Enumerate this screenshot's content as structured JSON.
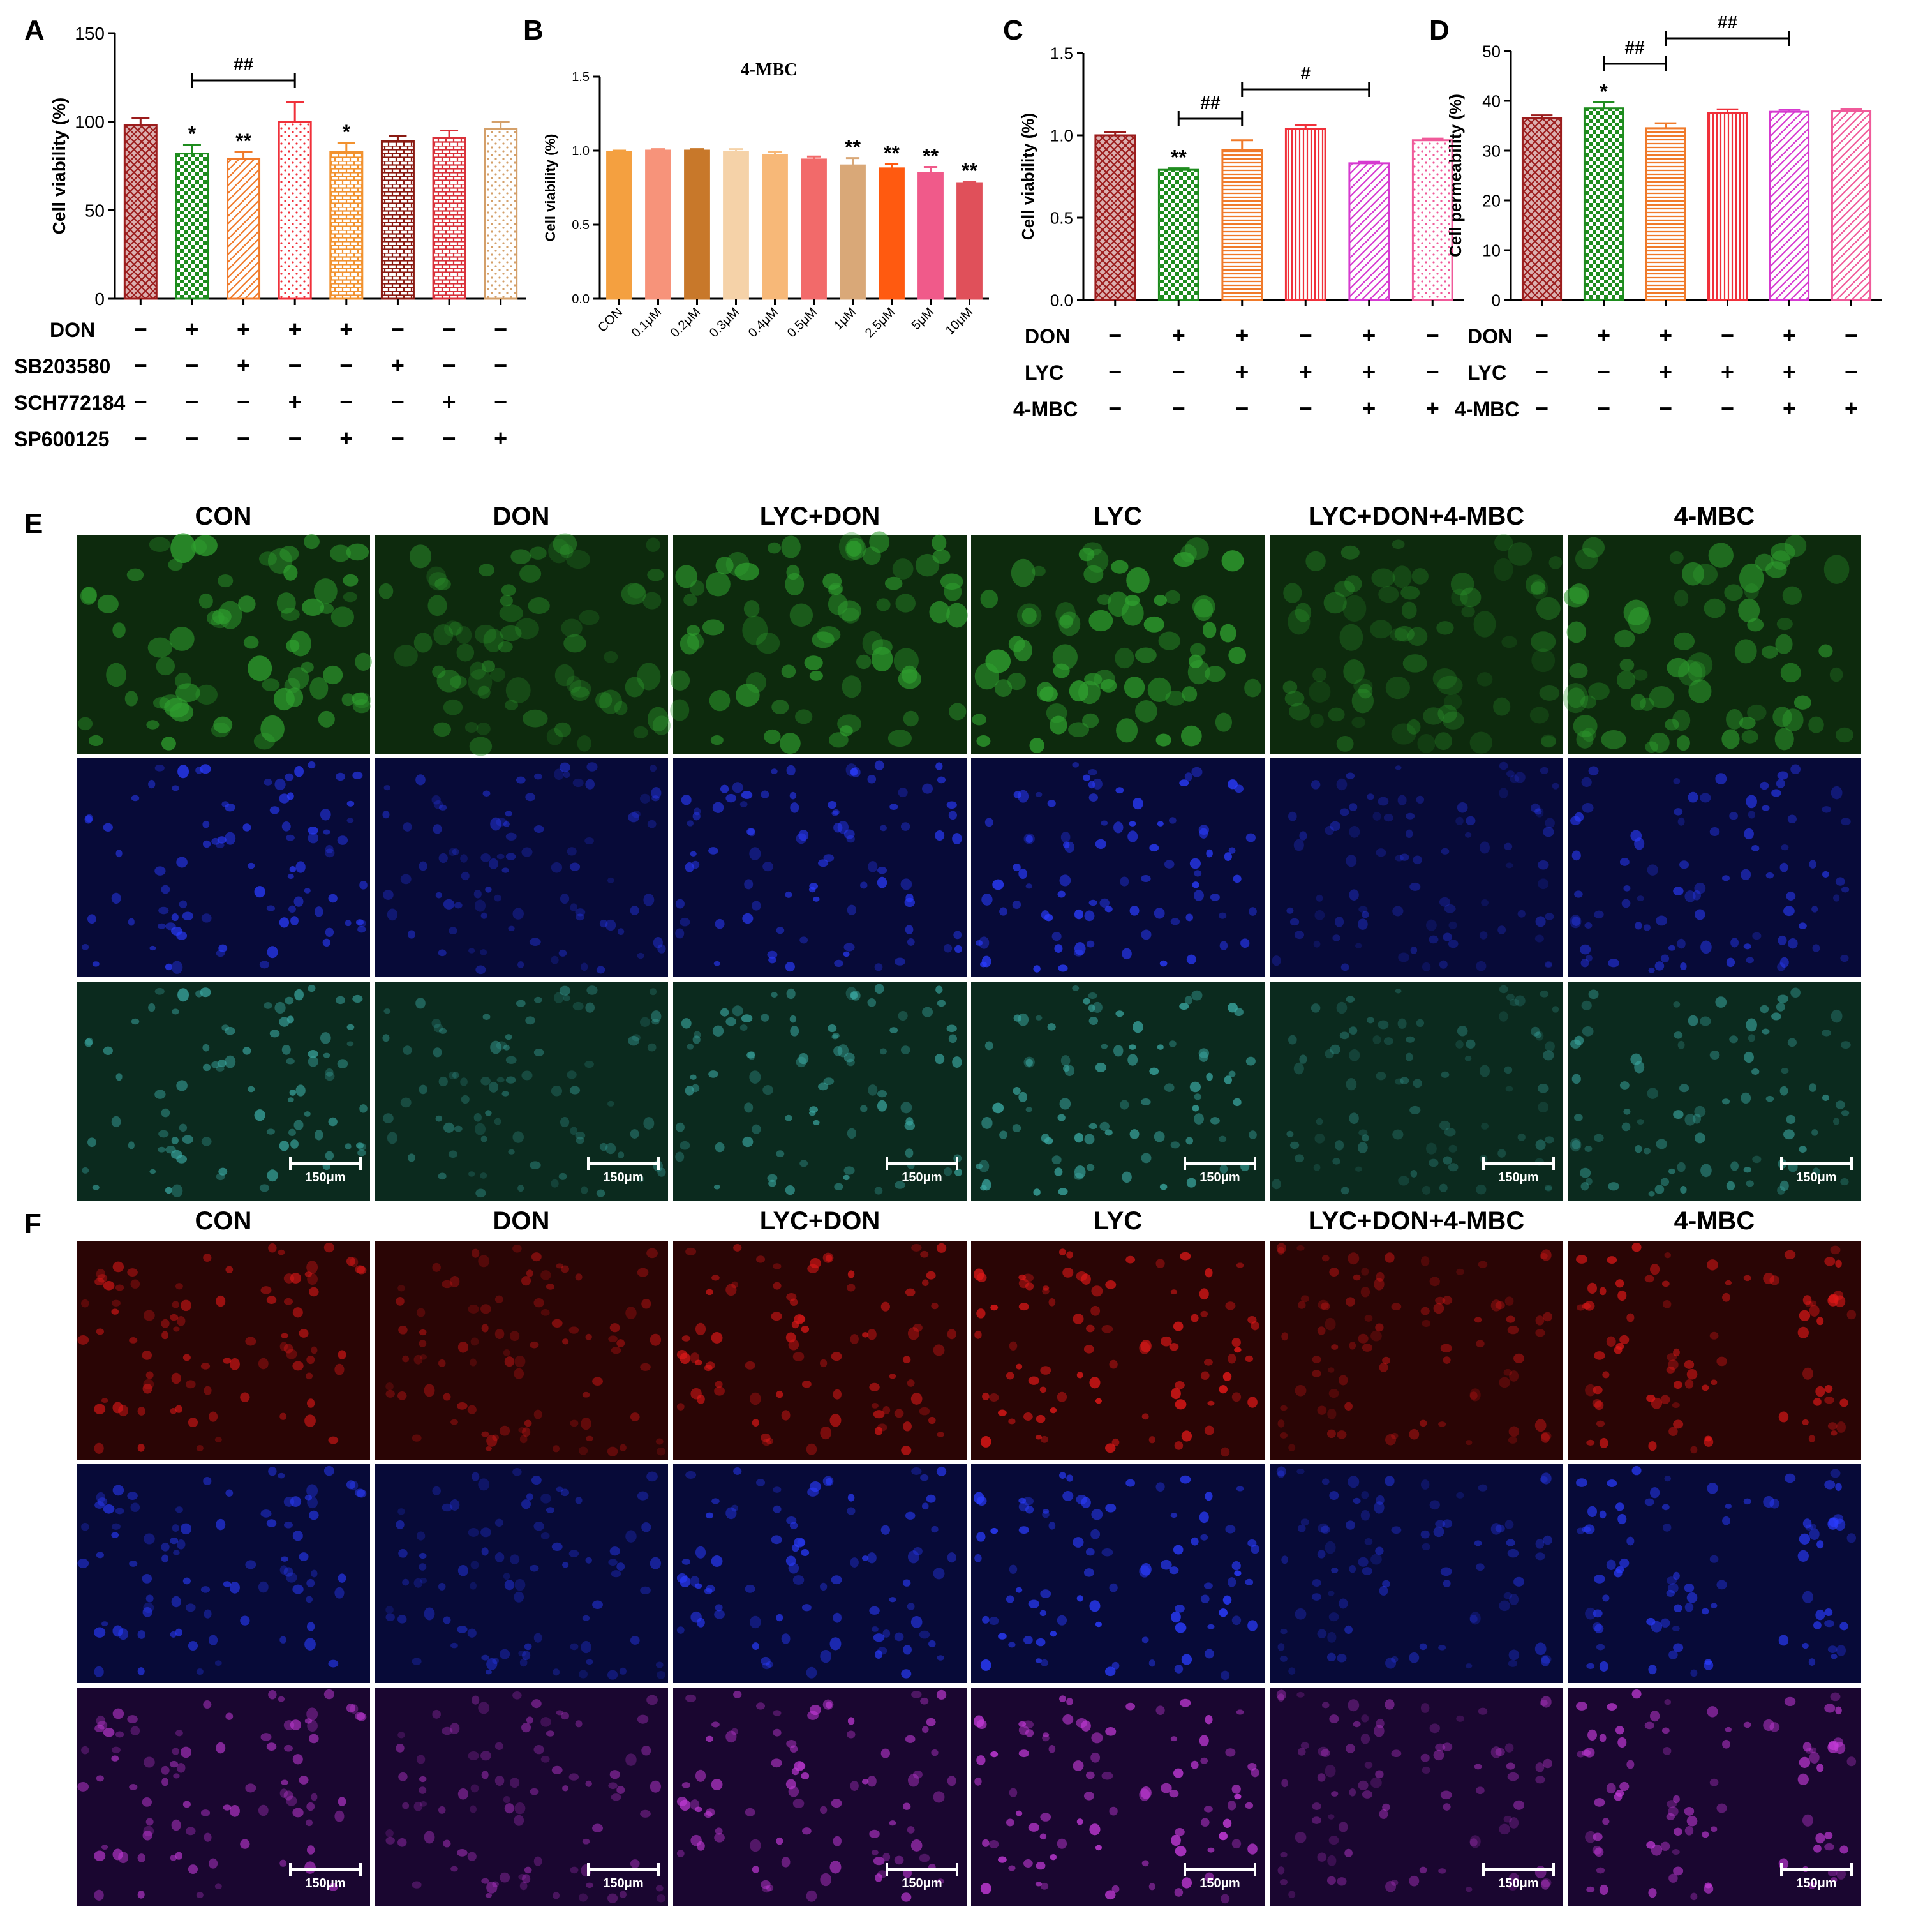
{
  "panel_letters": [
    "A",
    "B",
    "C",
    "D",
    "E",
    "F"
  ],
  "plus_sign": "+",
  "minus_sign": "−",
  "chart_data": [
    {
      "id": "A",
      "type": "bar",
      "title": "",
      "ylabel": "Cell viability (%)",
      "ylim": [
        0,
        150
      ],
      "yticks": [
        0,
        50,
        100,
        150
      ],
      "values": [
        98,
        82,
        79,
        100,
        83,
        89,
        91,
        96
      ],
      "errors": [
        4,
        5,
        4,
        11,
        5,
        3,
        4,
        4
      ],
      "colors": [
        "#9b1c1c",
        "#1e8c1e",
        "#f07a2a",
        "#f0303a",
        "#f2922f",
        "#8a1a12",
        "#d9313a",
        "#d4a06a"
      ],
      "patterns": [
        "crosshatch",
        "checker",
        "diag",
        "dots",
        "brick",
        "brick",
        "brick",
        "dots"
      ],
      "annotations": [
        "",
        "*",
        "**",
        "",
        "*",
        "",
        "",
        ""
      ],
      "brackets": [
        {
          "from": 1,
          "to": 3,
          "label": "##"
        }
      ],
      "treatments": [
        {
          "name": "DON",
          "signs": [
            "-",
            "+",
            "+",
            "+",
            "+",
            "-",
            "-",
            "-"
          ]
        },
        {
          "name": "SB203580",
          "signs": [
            "-",
            "-",
            "+",
            "-",
            "-",
            "+",
            "-",
            "-"
          ]
        },
        {
          "name": "SCH772184",
          "signs": [
            "-",
            "-",
            "-",
            "+",
            "-",
            "-",
            "+",
            "-"
          ]
        },
        {
          "name": "SP600125",
          "signs": [
            "-",
            "-",
            "-",
            "-",
            "+",
            "-",
            "-",
            "+"
          ]
        }
      ]
    },
    {
      "id": "B",
      "type": "bar",
      "title": "4-MBC",
      "ylabel": "Cell viability (%)",
      "ylim": [
        0,
        1.5
      ],
      "yticks": [
        0.0,
        0.5,
        1.0,
        1.5
      ],
      "categories": [
        "CON",
        "0.1μM",
        "0.2μM",
        "0.3μM",
        "0.4μM",
        "0.5μM",
        "1μM",
        "2.5μM",
        "5μM",
        "10μM"
      ],
      "values": [
        0.99,
        1.0,
        1.0,
        0.99,
        0.97,
        0.94,
        0.9,
        0.88,
        0.85,
        0.78
      ],
      "errors": [
        0.01,
        0.01,
        0.01,
        0.02,
        0.02,
        0.02,
        0.05,
        0.03,
        0.04,
        0.01
      ],
      "colors": [
        "#f4a040",
        "#f7937a",
        "#c8782a",
        "#f5d2a8",
        "#f7b878",
        "#f26a6a",
        "#d9a878",
        "#ff5a10",
        "#f05a8a",
        "#e0505a"
      ],
      "annotations": [
        "",
        "",
        "",
        "",
        "",
        "",
        "**",
        "**",
        "**",
        "**"
      ]
    },
    {
      "id": "C",
      "type": "bar",
      "title": "",
      "ylabel": "Cell viability (%)",
      "ylim": [
        0,
        1.5
      ],
      "yticks": [
        0.0,
        0.5,
        1.0,
        1.5
      ],
      "values": [
        1.0,
        0.79,
        0.91,
        1.04,
        0.83,
        0.97
      ],
      "errors": [
        0.02,
        0.01,
        0.06,
        0.02,
        0.01,
        0.01
      ],
      "colors": [
        "#9b1c1c",
        "#1e8c1e",
        "#f07a2a",
        "#f0303a",
        "#d63ad0",
        "#f05a9a"
      ],
      "patterns": [
        "crosshatch",
        "checker",
        "hlines",
        "vlines",
        "diag",
        "dots"
      ],
      "annotations": [
        "",
        "**",
        "",
        "",
        "",
        ""
      ],
      "brackets": [
        {
          "from": 1,
          "to": 2,
          "label": "##"
        },
        {
          "from": 2,
          "to": 4,
          "label": "#"
        }
      ],
      "treatments": [
        {
          "name": "DON",
          "signs": [
            "-",
            "+",
            "+",
            "-",
            "+",
            "-"
          ]
        },
        {
          "name": "LYC",
          "signs": [
            "-",
            "-",
            "+",
            "+",
            "+",
            "-"
          ]
        },
        {
          "name": "4-MBC",
          "signs": [
            "-",
            "-",
            "-",
            "-",
            "+",
            "+"
          ]
        }
      ]
    },
    {
      "id": "D",
      "type": "bar",
      "title": "",
      "ylabel": "Cell permeability (%)",
      "ylim": [
        0,
        50
      ],
      "yticks": [
        0,
        10,
        20,
        30,
        40,
        50
      ],
      "values": [
        36.5,
        38.5,
        34.5,
        37.5,
        37.8,
        38.0
      ],
      "errors": [
        0.6,
        1.2,
        1.0,
        0.8,
        0.4,
        0.4
      ],
      "colors": [
        "#9b1c1c",
        "#1e8c1e",
        "#f07a2a",
        "#f0303a",
        "#d63ad0",
        "#f05a9a"
      ],
      "patterns": [
        "crosshatch",
        "checker",
        "hlines",
        "vlines",
        "diag",
        "diag"
      ],
      "annotations": [
        "",
        "*",
        "",
        "",
        "",
        ""
      ],
      "brackets": [
        {
          "from": 1,
          "to": 2,
          "label": "##"
        },
        {
          "from": 2,
          "to": 4,
          "label": "##"
        }
      ],
      "treatments": [
        {
          "name": "DON",
          "signs": [
            "-",
            "+",
            "+",
            "-",
            "+",
            "-"
          ]
        },
        {
          "name": "LYC",
          "signs": [
            "-",
            "-",
            "+",
            "+",
            "+",
            "-"
          ]
        },
        {
          "name": "4-MBC",
          "signs": [
            "-",
            "-",
            "-",
            "-",
            "+",
            "+"
          ]
        }
      ]
    }
  ],
  "micrographs": {
    "columns": [
      "CON",
      "DON",
      "LYC+DON",
      "LYC",
      "LYC+DON+4-MBC",
      "4-MBC"
    ],
    "scale_bar": "150μm",
    "panel_E_rows": [
      "green",
      "blue",
      "merge-green"
    ],
    "panel_F_rows": [
      "red",
      "blue",
      "merge-red"
    ],
    "intensity_E": [
      0.9,
      0.55,
      0.85,
      0.95,
      0.45,
      0.75
    ],
    "intensity_F": [
      0.75,
      0.55,
      0.85,
      1.0,
      0.55,
      0.85
    ],
    "colors": {
      "green_bg": "#0d2a0d",
      "green_cell": "#2fa02f",
      "blue_bg": "#070a38",
      "blue_cell": "#2a3cff",
      "mergeg_bg": "#0b2a1e",
      "mergeg_cell": "#3aa6a0",
      "red_bg": "#2a0505",
      "red_cell": "#e01818",
      "mergef_bg": "#1a0630",
      "mergef_cell": "#c43ad8"
    }
  }
}
